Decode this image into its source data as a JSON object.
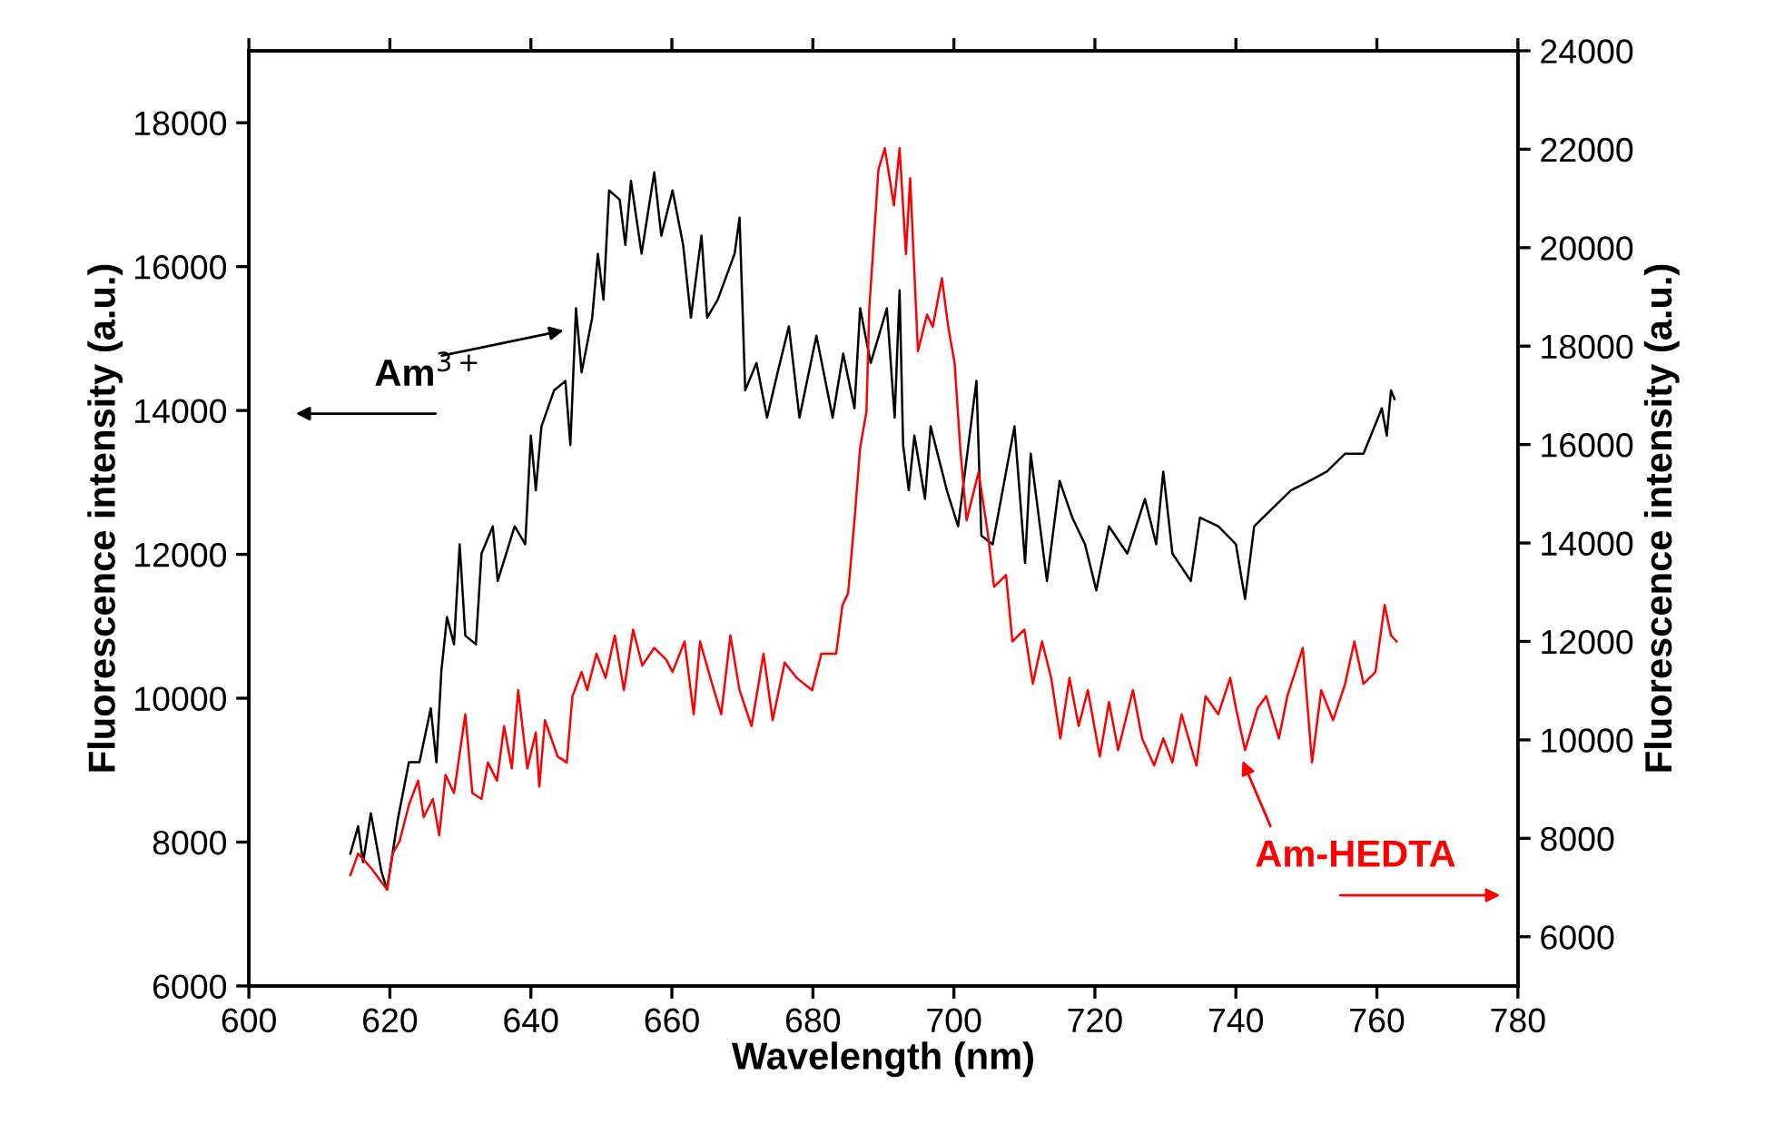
{
  "chart_data": {
    "type": "line",
    "xlabel": "Wavelength (nm)",
    "ylabel": "Fluorescence intensity (a.u.)",
    "y2label": "Fluorescence intensity (a.u.)",
    "xlim": [
      600,
      780
    ],
    "xticks": [
      600,
      620,
      640,
      660,
      680,
      700,
      720,
      740,
      760,
      780
    ],
    "ylim": [
      6000,
      19000
    ],
    "yticks": [
      6000,
      8000,
      10000,
      12000,
      14000,
      16000,
      18000
    ],
    "y2lim": [
      5000,
      24000
    ],
    "y2ticks": [
      6000,
      8000,
      10000,
      12000,
      14000,
      16000,
      18000,
      20000,
      22000,
      24000
    ],
    "line_style": "solid",
    "marker": "none",
    "series": [
      {
        "color": "#000000",
        "axis": "y",
        "x": [
          614.4,
          615.5,
          616.2,
          617.3,
          618.8,
          619.6,
          621.1,
          622.7,
          624.2,
          625.8,
          626.6,
          627.3,
          628.1,
          629.1,
          629.9,
          630.7,
          632.2,
          633.0,
          634.6,
          635.3,
          637.7,
          639.2,
          640.0,
          640.7,
          641.5,
          643.3,
          644.9,
          645.6,
          646.4,
          647.2,
          648.7,
          649.5,
          650.3,
          651.1,
          652.6,
          653.4,
          654.2,
          655.7,
          657.5,
          658.5,
          660.1,
          661.6,
          662.7,
          664.2,
          665.0,
          666.5,
          668.9,
          669.6,
          670.4,
          672.0,
          673.5,
          675.0,
          676.6,
          678.1,
          680.5,
          682.8,
          684.3,
          685.9,
          686.7,
          688.2,
          690.5,
          691.6,
          692.3,
          692.8,
          693.6,
          694.4,
          695.9,
          696.7,
          699.0,
          700.6,
          703.2,
          703.9,
          705.5,
          708.6,
          710.1,
          710.9,
          713.2,
          715.0,
          716.8,
          718.6,
          720.2,
          722.0,
          724.6,
          727.1,
          728.7,
          729.7,
          731.0,
          733.6,
          734.9,
          737.5,
          740.0,
          741.3,
          742.6,
          745.2,
          747.8,
          750.4,
          752.9,
          755.5,
          758.1,
          760.7,
          761.4,
          762.0,
          762.5
        ],
        "values": [
          7840,
          8220,
          7720,
          8400,
          7590,
          7340,
          8300,
          9110,
          9110,
          9860,
          9110,
          10370,
          11130,
          10750,
          12140,
          10870,
          10750,
          12010,
          12390,
          11630,
          12390,
          12140,
          13650,
          12890,
          13780,
          14280,
          14410,
          13520,
          15420,
          14530,
          15290,
          16180,
          15540,
          17060,
          16930,
          16300,
          17190,
          16180,
          17310,
          16430,
          17060,
          16300,
          15290,
          16430,
          15290,
          15540,
          16180,
          16680,
          14280,
          14660,
          13900,
          14530,
          15170,
          13900,
          15040,
          13900,
          14790,
          14030,
          15420,
          14660,
          15420,
          13900,
          15670,
          13520,
          12890,
          13650,
          12770,
          13780,
          12890,
          12390,
          14410,
          12260,
          12140,
          13780,
          11880,
          13400,
          11630,
          13020,
          12510,
          12140,
          11500,
          12390,
          12010,
          12770,
          12140,
          13150,
          12010,
          11630,
          12510,
          12390,
          12140,
          11380,
          12390,
          12640,
          12890,
          13020,
          13150,
          13400,
          13400,
          14030,
          13650,
          14280,
          14160
        ]
      },
      {
        "color": "#ff0000",
        "axis": "y2",
        "x": [
          614.4,
          615.5,
          617.3,
          619.6,
          620.4,
          621.4,
          622.7,
          624.0,
          624.8,
          626.1,
          627.0,
          627.9,
          629.1,
          630.7,
          631.7,
          633.0,
          633.9,
          635.2,
          636.2,
          637.3,
          638.2,
          639.5,
          640.7,
          641.2,
          642.0,
          643.8,
          645.1,
          645.9,
          647.2,
          648.0,
          649.3,
          650.6,
          651.9,
          653.2,
          654.5,
          655.8,
          657.5,
          659.2,
          660.1,
          661.8,
          663.1,
          664.0,
          665.7,
          667.0,
          668.3,
          669.6,
          671.3,
          673.0,
          674.3,
          676.0,
          677.7,
          679.9,
          681.2,
          683.3,
          684.2,
          685.0,
          685.9,
          686.7,
          687.6,
          688.0,
          689.3,
          690.2,
          691.5,
          692.3,
          693.2,
          693.8,
          694.9,
          696.2,
          697.0,
          698.3,
          699.2,
          700.1,
          700.9,
          701.8,
          703.5,
          704.8,
          705.7,
          707.4,
          708.3,
          710.0,
          711.2,
          712.5,
          713.8,
          715.1,
          716.4,
          717.7,
          719.0,
          720.7,
          722.0,
          723.3,
          725.4,
          726.7,
          728.4,
          729.7,
          731.0,
          732.3,
          734.4,
          735.7,
          737.5,
          739.2,
          740.0,
          741.3,
          743.1,
          744.3,
          746.1,
          747.3,
          749.5,
          750.8,
          752.1,
          753.8,
          755.5,
          756.8,
          758.1,
          759.8,
          761.1,
          762.0,
          762.8
        ],
        "values": [
          7250,
          7690,
          7400,
          6960,
          7690,
          7950,
          8680,
          9170,
          8430,
          8800,
          8060,
          9290,
          8920,
          10520,
          8920,
          8800,
          9540,
          9170,
          10280,
          9420,
          11010,
          9420,
          10150,
          9050,
          10400,
          9660,
          9540,
          10890,
          11380,
          11010,
          11750,
          11260,
          12120,
          11010,
          12240,
          11510,
          11870,
          11630,
          11380,
          12000,
          10520,
          12000,
          11140,
          10520,
          12120,
          11010,
          10280,
          11750,
          10400,
          11570,
          11260,
          11010,
          11750,
          11750,
          12740,
          12980,
          14460,
          15930,
          16670,
          18760,
          21590,
          22020,
          20860,
          22020,
          19870,
          21410,
          17900,
          18640,
          18390,
          19380,
          18390,
          17660,
          15930,
          14460,
          15440,
          14210,
          13110,
          13350,
          12000,
          12240,
          11140,
          12000,
          11260,
          10030,
          11260,
          10280,
          11010,
          9660,
          10770,
          9790,
          11010,
          10030,
          9480,
          10030,
          9540,
          10520,
          9480,
          10890,
          10520,
          11260,
          10650,
          9790,
          10650,
          10890,
          10030,
          10890,
          11870,
          9540,
          11010,
          10400,
          11140,
          12000,
          11140,
          11380,
          12740,
          12120,
          12000
        ]
      }
    ],
    "annotations": [
      "Am$^{3+}$",
      "Am-HEDTA"
    ]
  }
}
